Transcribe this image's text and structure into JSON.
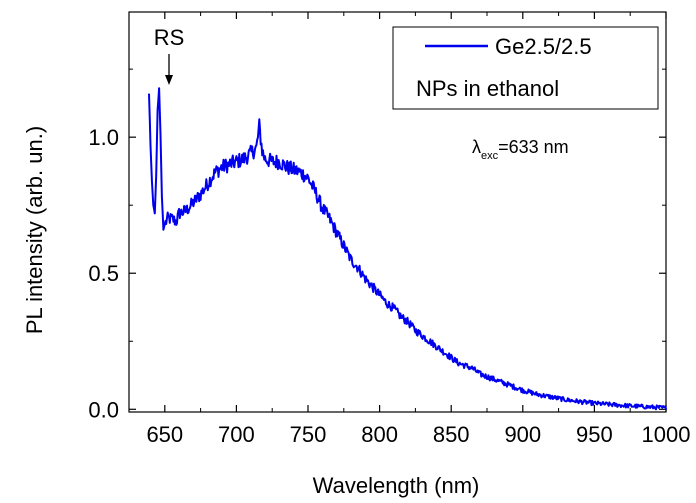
{
  "chart_data": {
    "type": "line",
    "xlabel": "Wavelength (nm)",
    "ylabel": "PL intensity (arb. un.)",
    "xlim": [
      625,
      1000
    ],
    "ylim": [
      -0.01,
      1.46
    ],
    "x_ticks": [
      650,
      700,
      750,
      800,
      850,
      900,
      950,
      1000
    ],
    "x_tick_labels": [
      "650",
      "700",
      "750",
      "800",
      "850",
      "900",
      "950",
      "1000"
    ],
    "y_ticks": [
      0.0,
      0.5,
      1.0
    ],
    "y_tick_labels": [
      "0.0",
      "0.5",
      "1.0"
    ],
    "grid": false,
    "legend_position": "top-right",
    "legend": {
      "series_label": "Ge2.5/2.5",
      "extra_line": "NPs in ethanol"
    },
    "annotations": {
      "rs_label": "RS",
      "rs_wavelength": 646,
      "rs_intensity": 1.18,
      "excitation_symbol": "λ",
      "excitation_subscript": "exc",
      "excitation_value": "=633 nm"
    },
    "series": [
      {
        "name": "Ge2.5/2.5",
        "color": "#0000ee",
        "x": [
          639,
          640,
          641,
          642,
          643,
          644,
          645,
          646,
          647,
          648,
          649,
          650,
          652,
          655,
          658,
          660,
          665,
          670,
          675,
          680,
          685,
          690,
          695,
          700,
          705,
          710,
          714,
          716,
          718,
          720,
          725,
          730,
          735,
          740,
          745,
          750,
          755,
          760,
          765,
          770,
          775,
          780,
          785,
          790,
          795,
          800,
          805,
          810,
          815,
          820,
          825,
          830,
          835,
          840,
          845,
          850,
          855,
          860,
          865,
          870,
          875,
          880,
          885,
          890,
          895,
          900,
          910,
          920,
          930,
          940,
          950,
          960,
          970,
          980,
          990,
          1000
        ],
        "y": [
          1.16,
          0.97,
          0.84,
          0.75,
          0.72,
          0.86,
          1.1,
          1.18,
          1.01,
          0.78,
          0.66,
          0.68,
          0.7,
          0.7,
          0.69,
          0.72,
          0.73,
          0.76,
          0.79,
          0.83,
          0.87,
          0.89,
          0.9,
          0.91,
          0.92,
          0.94,
          0.96,
          1.04,
          0.95,
          0.92,
          0.91,
          0.91,
          0.89,
          0.88,
          0.87,
          0.85,
          0.8,
          0.74,
          0.7,
          0.65,
          0.6,
          0.55,
          0.52,
          0.48,
          0.45,
          0.42,
          0.39,
          0.37,
          0.34,
          0.32,
          0.29,
          0.27,
          0.25,
          0.23,
          0.21,
          0.19,
          0.17,
          0.16,
          0.15,
          0.13,
          0.12,
          0.11,
          0.1,
          0.09,
          0.08,
          0.07,
          0.055,
          0.045,
          0.035,
          0.028,
          0.022,
          0.018,
          0.014,
          0.011,
          0.008,
          0.005
        ]
      }
    ]
  }
}
